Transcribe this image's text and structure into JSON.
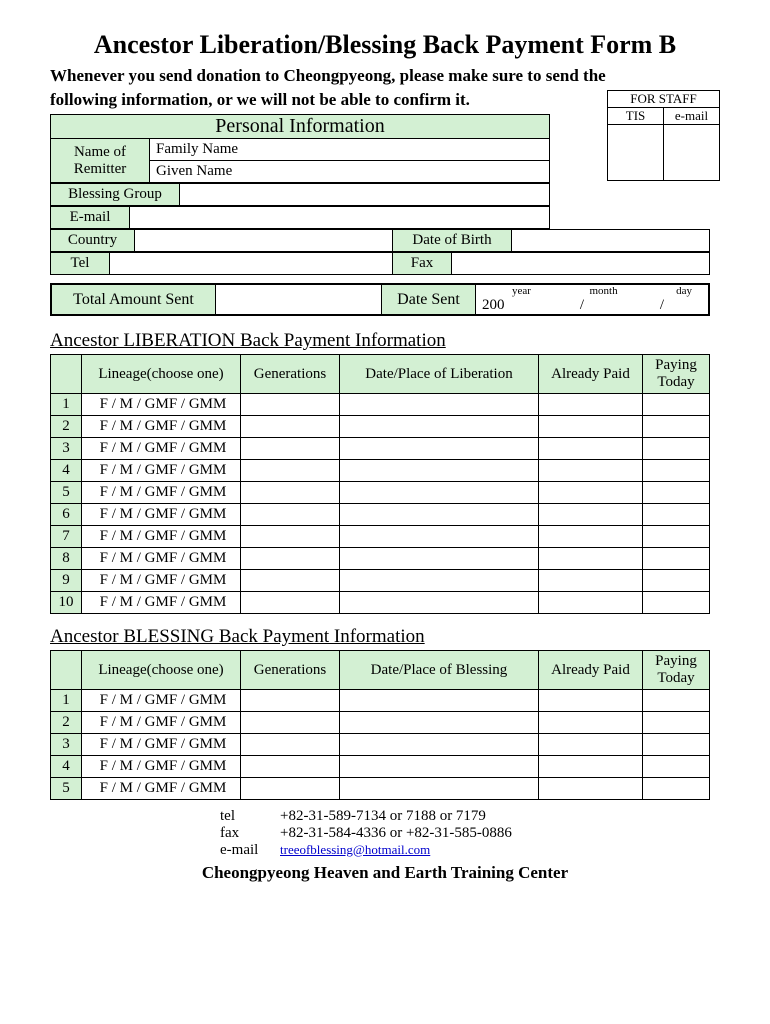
{
  "title": "Ancestor Liberation/Blessing Back Payment Form B",
  "subtitle1": "Whenever you send donation to Cheongpyeong, please make sure to send the",
  "subtitle2": "following information, or we will not be able to confirm it.",
  "staff": {
    "header": "FOR STAFF",
    "col1": "TIS",
    "col2": "e-mail"
  },
  "personal": {
    "header": "Personal Information",
    "name_of_remitter": "Name of Remitter",
    "family_name": "Family Name",
    "given_name": "Given Name",
    "blessing_group": "Blessing Group",
    "email": "E-mail",
    "country": "Country",
    "dob": "Date of Birth",
    "tel": "Tel",
    "fax": "Fax"
  },
  "amount": {
    "total": "Total Amount Sent",
    "date_sent": "Date Sent",
    "year": "year",
    "month": "month",
    "day": "day",
    "year_prefix": "200",
    "slash": "/"
  },
  "lib": {
    "header": "Ancestor LIBERATION Back Payment Information",
    "cols": {
      "lineage": "Lineage(choose one)",
      "gen": "Generations",
      "dateplace": "Date/Place of Liberation",
      "paid": "Already Paid",
      "today": "Paying Today"
    },
    "row_count": 10,
    "lineage_text": "F / M / GMF / GMM"
  },
  "bless": {
    "header": "Ancestor BLESSING Back Payment Information",
    "cols": {
      "lineage": "Lineage(choose one)",
      "gen": "Generations",
      "dateplace": "Date/Place of Blessing",
      "paid": "Already Paid",
      "today": "Paying Today"
    },
    "row_count": 5,
    "lineage_text": "F / M / GMF / GMM"
  },
  "contact": {
    "tel_lbl": "tel",
    "tel_val": "+82-31-589-7134 or 7188 or 7179",
    "fax_lbl": "fax",
    "fax_val": "+82-31-584-4336 or +82-31-585-0886",
    "email_lbl": "e-mail",
    "email_val": "treeofblessing@hotmail.com"
  },
  "org": "Cheongpyeong Heaven and Earth Training Center",
  "colors": {
    "green": "#d3f0d3",
    "border": "#000000"
  },
  "col_widths": {
    "num": 22,
    "lineage": 150,
    "gen": 90,
    "dateplace": 190,
    "paid": 100,
    "today": 100
  }
}
